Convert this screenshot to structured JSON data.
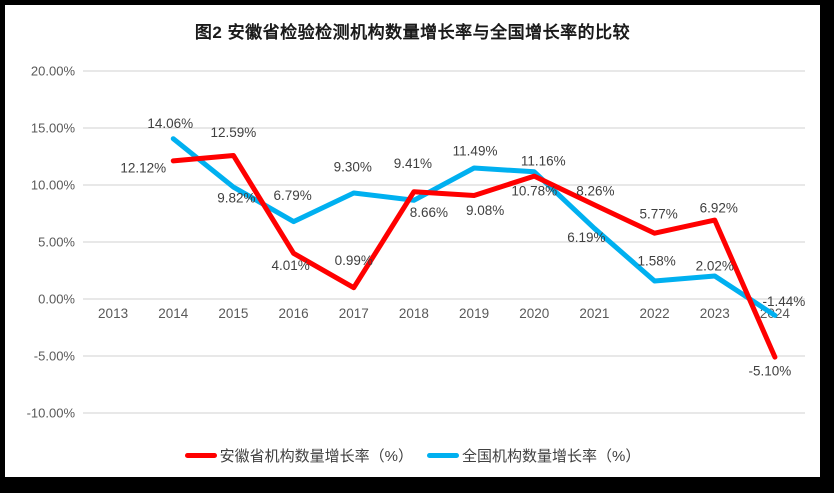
{
  "title": "图2 安徽省检验检测机构数量增长率与全国增长率的比较",
  "colors": {
    "anhui_red": "#FF0000",
    "national_blue": "#00B0F0",
    "gridline": "#D9D9D9",
    "axis_text": "#595959",
    "data_label_text": "#404040",
    "frame": "#000000",
    "background": "#FFFFFF"
  },
  "legend": [
    {
      "label": "安徽省机构数量增长率（%）",
      "color": "#FF0000"
    },
    {
      "label": "全国机构数量增长率（%）",
      "color": "#00B0F0"
    }
  ],
  "chart_data": {
    "type": "line",
    "title": "图2 安徽省检验检测机构数量增长率与全国增长率的比较",
    "categories": [
      "2013",
      "2014",
      "2015",
      "2016",
      "2017",
      "2018",
      "2019",
      "2020",
      "2021",
      "2022",
      "2023",
      "2024"
    ],
    "series": [
      {
        "name": "安徽省机构数量增长率（%）",
        "color": "#FF0000",
        "values": [
          null,
          12.12,
          12.59,
          4.01,
          0.99,
          9.41,
          9.08,
          10.78,
          8.26,
          5.77,
          6.92,
          -5.1
        ],
        "label_offsets": [
          null,
          [
            -30,
            7
          ],
          [
            0,
            -23
          ],
          [
            -3,
            12
          ],
          [
            0,
            -27
          ],
          [
            -1,
            -28
          ],
          [
            11,
            15
          ],
          [
            0,
            15
          ],
          [
            1,
            -14
          ],
          [
            4,
            -19
          ],
          [
            4,
            -12
          ],
          [
            -5,
            14
          ]
        ]
      },
      {
        "name": "全国机构数量增长率（%）",
        "color": "#00B0F0",
        "values": [
          null,
          14.06,
          9.82,
          6.79,
          9.3,
          8.66,
          11.49,
          11.16,
          6.19,
          1.58,
          2.02,
          -1.44
        ],
        "label_offsets": [
          null,
          [
            -3,
            -15
          ],
          [
            3,
            11
          ],
          [
            -1,
            -26
          ],
          [
            -1,
            -26
          ],
          [
            15,
            12
          ],
          [
            1,
            -17
          ],
          [
            9,
            -11
          ],
          [
            -8,
            9
          ],
          [
            2,
            -20
          ],
          [
            0,
            -10
          ],
          [
            9,
            -14
          ]
        ]
      }
    ],
    "ylim": [
      -10,
      20
    ],
    "ytick_step": 5,
    "ytick_labels": [
      "20.00%",
      "15.00%",
      "10.00%",
      "5.00%",
      "0.00%",
      "-5.00%",
      "-10.00%"
    ],
    "value_label_format": "0.00%",
    "grid": true,
    "legend_position": "bottom",
    "data_labels_visible": true
  }
}
